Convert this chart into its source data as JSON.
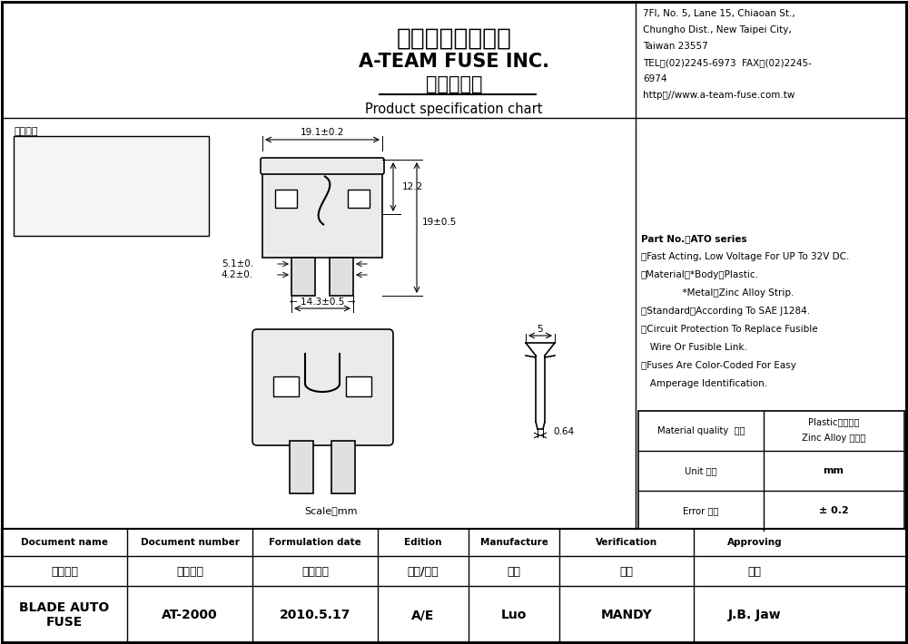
{
  "title_chinese": "保宇興業有限公司",
  "title_english": "A-TEAM FUSE INC.",
  "title_subtitle": "產品規格圖",
  "product_spec": "Product specification chart",
  "company_info": [
    "7Fl, No. 5, Lane 15, Chiaoan St.,",
    "Chungho Dist., New Taipei City,",
    "Taiwan 23557",
    "TEL：(02)2245-6973  FAX：(02)2245-",
    "6974",
    "http：//www.a-team-fuse.com.tw"
  ],
  "photo_label": "成品圖示",
  "spec_notes": [
    "Part No.：ATO series",
    "＊Fast Acting, Low Voltage For UP To 32V DC.",
    "＊Material：*Body：Plastic.",
    "              *Metal：Zinc Alloy Strip.",
    "＊Standard：According To SAE J1284.",
    "＊Circuit Protection To Replace Fusible",
    "   Wire Or Fusible Link.",
    "＊Fuses Are Color-Coded For Easy",
    "   Amperage Identification."
  ],
  "table_row1_col1": "Material quality  材質",
  "table_row1_col2a": "Plastic塑成膠脂",
  "table_row1_col2b": "Zinc Alloy 鋅合金",
  "table_row2": [
    "Unit 單位",
    "mm"
  ],
  "table_row3": [
    "Error 誤差",
    "± 0.2"
  ],
  "footer_headers": [
    "Document name",
    "Document number",
    "Formulation date",
    "Edition",
    "Manufacture",
    "Verification",
    "Approving"
  ],
  "footer_row1": [
    "文件名稱",
    "文件編號",
    "制定日期",
    "版本/版次",
    "製作",
    "審核",
    "核准"
  ],
  "footer_row2": [
    "BLADE AUTO\nFUSE",
    "AT-2000",
    "2010.5.17",
    "A/E",
    "Luo",
    "MANDY",
    "J.B. Jaw"
  ],
  "dims": {
    "top_width": "19.1±0.2",
    "right_top": "12.2",
    "right_height": "19±0.5",
    "left_hole_width1": "5.1±0.",
    "left_hole_width2": "4.2±0.",
    "bottom_width": "14.3±0.5",
    "pin_top": "5",
    "pin_bottom": "0.64",
    "scale": "Scale：mm"
  },
  "bg_color": "#ffffff",
  "border_color": "#000000"
}
